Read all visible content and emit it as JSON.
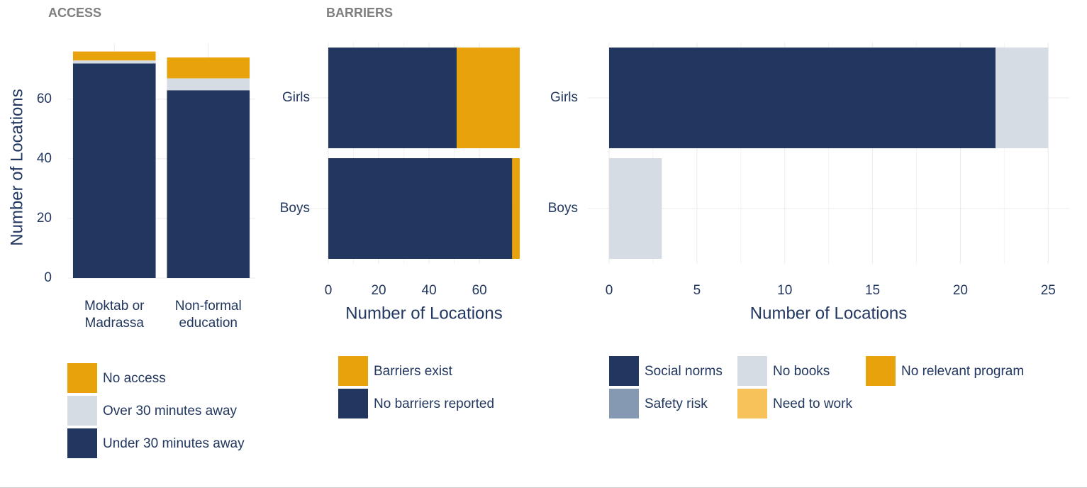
{
  "chart_data": [
    {
      "type": "bar",
      "orientation": "vertical",
      "stacked": true,
      "title": "ACCESS",
      "categories": [
        "Moktab or\nMadrassa",
        "Non-formal\neducation"
      ],
      "series": [
        {
          "name": "Under 30 minutes away",
          "color": "#22375f",
          "values": [
            72,
            63
          ]
        },
        {
          "name": "Over 30 minutes away",
          "color": "#d6dce4",
          "values": [
            1,
            4
          ]
        },
        {
          "name": "No access",
          "color": "#e8a20c",
          "values": [
            3,
            7
          ]
        }
      ],
      "ylabel": "Number of Locations",
      "ylim": [
        0,
        79
      ],
      "yticks": [
        0,
        20,
        40,
        60
      ],
      "grid": true
    },
    {
      "type": "bar",
      "orientation": "horizontal",
      "stacked": true,
      "title": "BARRIERS",
      "categories": [
        "Girls",
        "Boys"
      ],
      "series": [
        {
          "name": "No barriers reported",
          "color": "#22375f",
          "values": [
            51,
            73
          ]
        },
        {
          "name": "Barriers exist",
          "color": "#e8a20c",
          "values": [
            25,
            3
          ]
        }
      ],
      "xlabel": "Number of Locations",
      "xlim": [
        0,
        76
      ],
      "xticks": [
        0,
        20,
        40,
        60
      ],
      "grid": true
    },
    {
      "type": "bar",
      "orientation": "horizontal",
      "stacked": true,
      "categories": [
        "Girls",
        "Boys"
      ],
      "series": [
        {
          "name": "Social norms",
          "color": "#22375f",
          "values": [
            22,
            0
          ]
        },
        {
          "name": "Safety risk",
          "color": "#8599b3",
          "values": [
            0,
            0
          ]
        },
        {
          "name": "No books",
          "color": "#d6dce4",
          "values": [
            3,
            3
          ]
        },
        {
          "name": "Need to work",
          "color": "#f7c25a",
          "values": [
            0,
            0
          ]
        },
        {
          "name": "No relevant program",
          "color": "#e8a20c",
          "values": [
            0,
            0
          ]
        }
      ],
      "xlabel": "Number of Locations",
      "xlim": [
        0,
        26.2
      ],
      "xticks": [
        0,
        5,
        10,
        15,
        20,
        25
      ],
      "grid": true
    }
  ]
}
